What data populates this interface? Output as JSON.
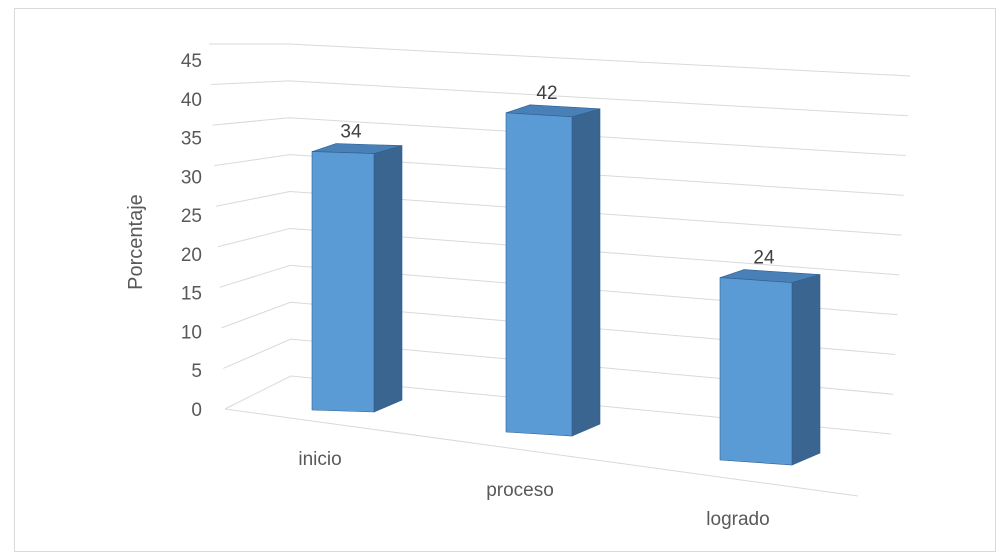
{
  "chart_data": {
    "type": "bar",
    "subtype": "3d-column",
    "categories": [
      "inicio",
      "proceso",
      "logrado"
    ],
    "values": [
      34,
      42,
      24
    ],
    "data_labels": [
      "34",
      "42",
      "24"
    ],
    "title": "",
    "xlabel": "",
    "ylabel": "Porcentaje",
    "ylim": [
      0,
      45
    ],
    "yticks": [
      "0",
      "5",
      "10",
      "15",
      "20",
      "25",
      "30",
      "35",
      "40",
      "45"
    ],
    "grid": true,
    "legend": "none",
    "colors": {
      "front": "#5b9bd5",
      "side": "#3a6590",
      "top": "#4a80b8",
      "edge": "#2f5f8f",
      "grid": "#d9d9d9",
      "text": "#595959"
    }
  }
}
